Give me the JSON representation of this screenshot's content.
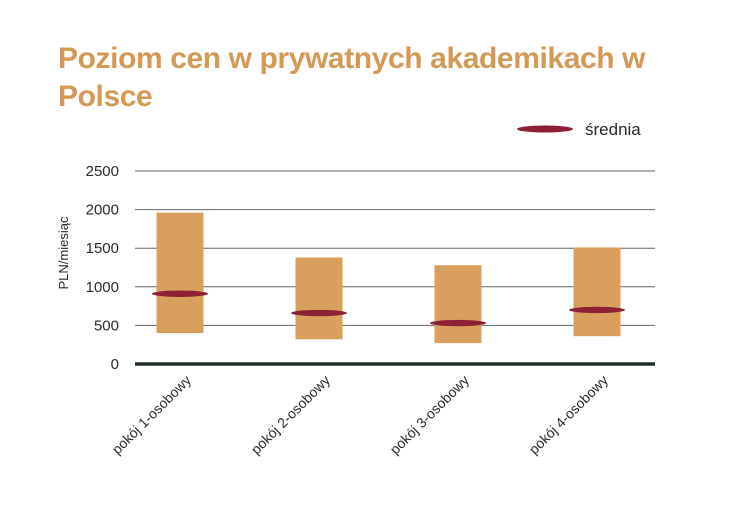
{
  "chart_data": {
    "type": "range-bar",
    "title": "Poziom cen w prywatnych akademikach w Polsce",
    "ylabel": "PLN/miesiąc",
    "ylim": [
      0,
      2500
    ],
    "yticks": [
      0,
      500,
      1000,
      1500,
      2000,
      2500
    ],
    "grid": true,
    "legend": {
      "position": "top-right",
      "label": "średnia"
    },
    "categories": [
      "pokój 1-osobowy",
      "pokój 2-osobowy",
      "pokój 3-osobowy",
      "pokój 4-osobowy"
    ],
    "series": [
      {
        "name": "min",
        "values": [
          400,
          320,
          270,
          360
        ]
      },
      {
        "name": "max",
        "values": [
          1960,
          1380,
          1280,
          1510
        ]
      },
      {
        "name": "średnia",
        "values": [
          910,
          660,
          530,
          700
        ]
      }
    ],
    "colors": {
      "range": "#D9A05D",
      "mean": "#8E2035",
      "axis": "#1f2a26",
      "grid": "#666666",
      "title": "#D49A55"
    }
  }
}
